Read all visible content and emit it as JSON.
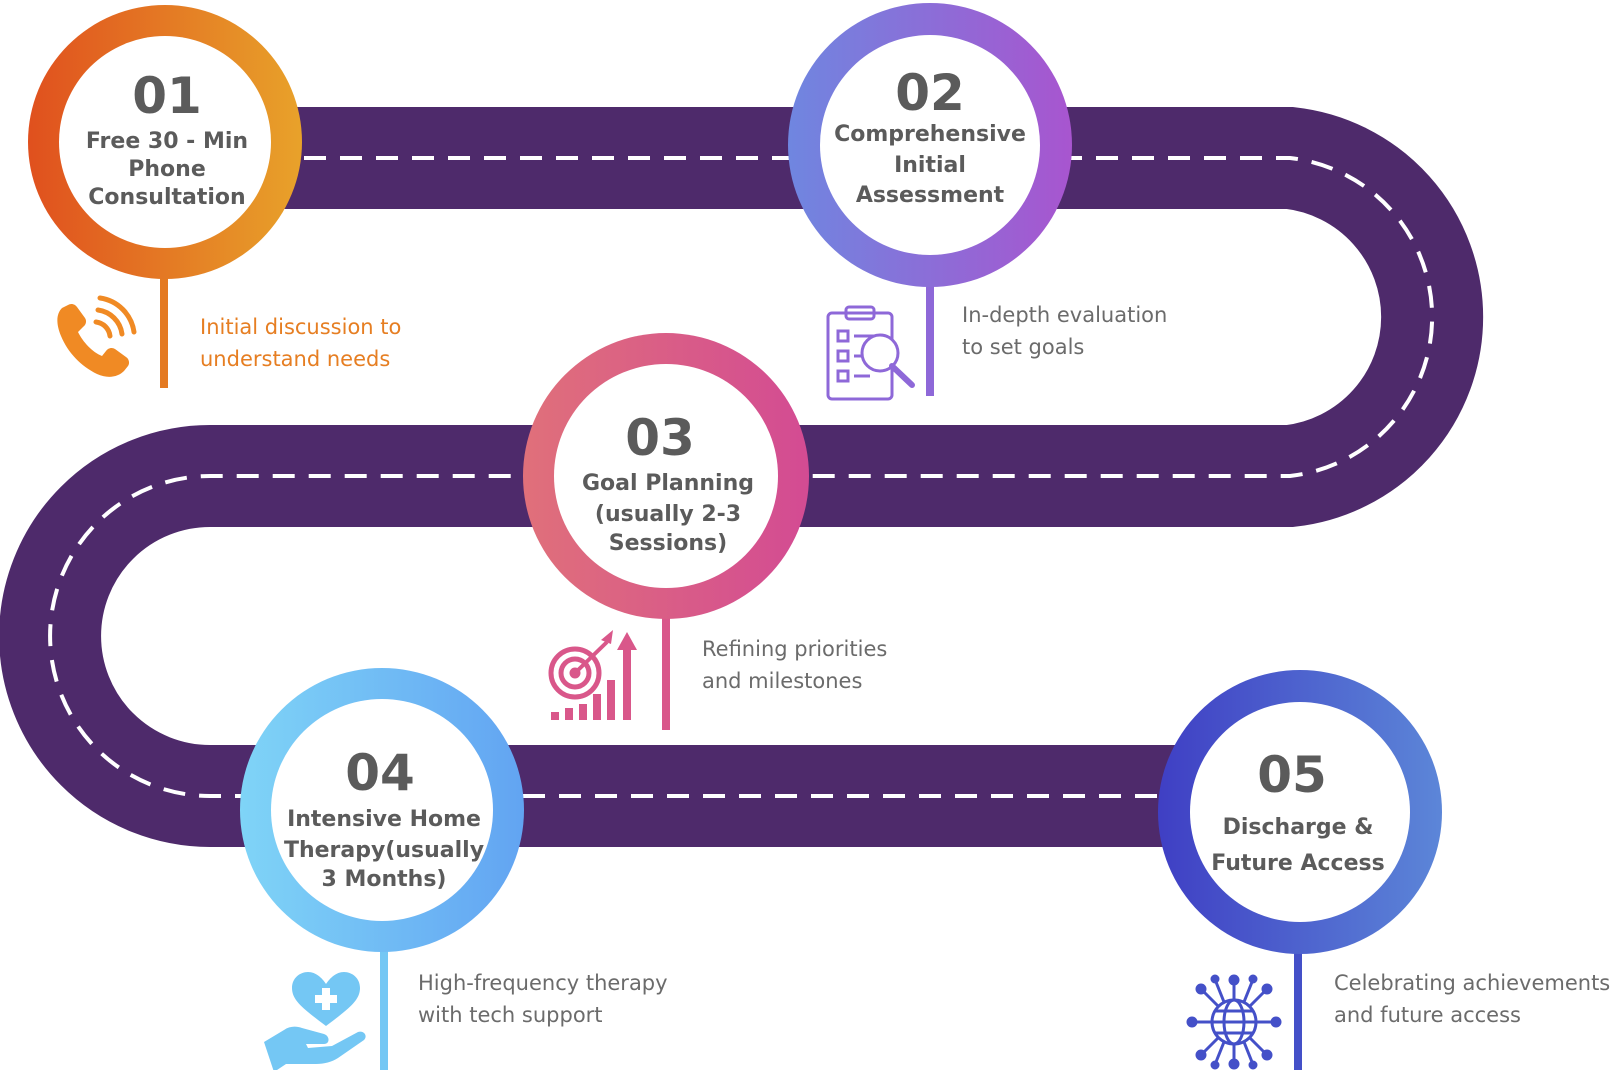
{
  "colors": {
    "road": "#4E2A6B",
    "road_dash": "#ffffff",
    "circle_fill": "#ffffff",
    "step_text": "#5b5b5b"
  },
  "steps": [
    {
      "number": "01",
      "title_lines": [
        "Free 30 - Min",
        "Phone",
        "Consultation"
      ],
      "desc_lines": [
        "Initial discussion to",
        "understand needs"
      ],
      "icon": "phone-call-icon",
      "gradient": [
        "#E0501E",
        "#E8A22A"
      ],
      "pin_color": "#E47A22",
      "desc_color": "#E67E22"
    },
    {
      "number": "02",
      "title_lines": [
        "Comprehensive",
        "Initial",
        "Assessment"
      ],
      "desc_lines": [
        "In-depth evaluation",
        "to set goals"
      ],
      "icon": "clipboard-search-icon",
      "gradient": [
        "#6F86E0",
        "#A855CF"
      ],
      "pin_color": "#8E68D8",
      "desc_color": "#6b6b6b"
    },
    {
      "number": "03",
      "title_lines": [
        "Goal Planning",
        "(usually 2-3",
        "Sessions)"
      ],
      "desc_lines": [
        "Refining priorities",
        "and milestones"
      ],
      "icon": "target-growth-icon",
      "gradient": [
        "#E0707A",
        "#D34B93"
      ],
      "pin_color": "#D9578A",
      "desc_color": "#6b6b6b"
    },
    {
      "number": "04",
      "title_lines": [
        "Intensive Home",
        "Therapy(usually",
        "3 Months)"
      ],
      "desc_lines": [
        "High-frequency therapy",
        "with tech support"
      ],
      "icon": "heart-hand-icon",
      "gradient": [
        "#7FD4F7",
        "#62A4F2"
      ],
      "pin_color": "#74C7F4",
      "desc_color": "#6b6b6b"
    },
    {
      "number": "05",
      "title_lines": [
        "Discharge &",
        "Future Access"
      ],
      "desc_lines": [
        "Celebrating achievements",
        "and future access"
      ],
      "icon": "globe-network-icon",
      "gradient": [
        "#3F3FC4",
        "#5C86D8"
      ],
      "pin_color": "#4450C8",
      "desc_color": "#6b6b6b"
    }
  ]
}
